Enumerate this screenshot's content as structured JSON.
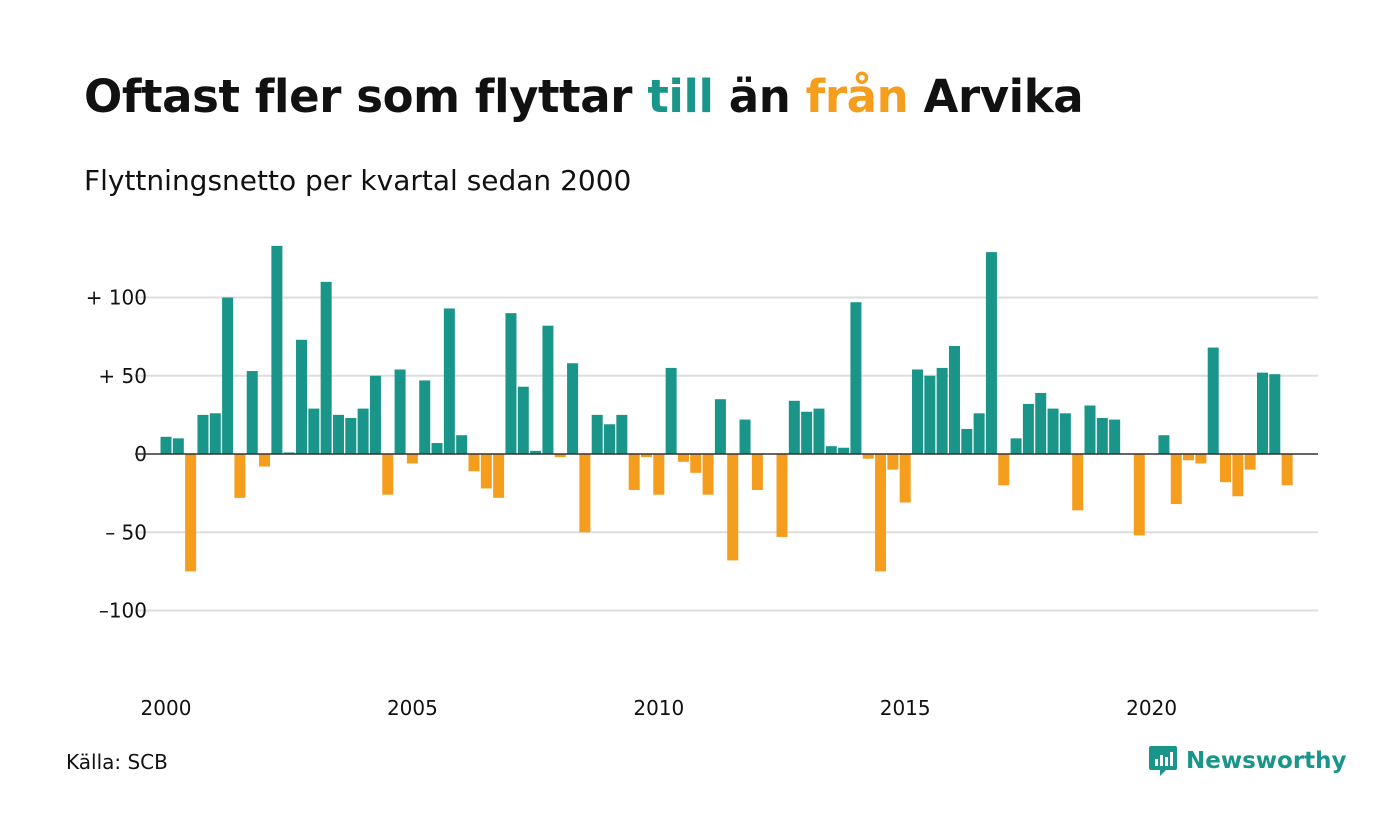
{
  "title": {
    "part1": "Oftast fler som flyttar",
    "till": "till",
    "part2": "än",
    "fran": "från",
    "part3": "Arvika"
  },
  "subtitle": "Flyttningsnetto per kvartal sedan 2000",
  "source": "Källa: SCB",
  "brand": "Newsworthy",
  "colors": {
    "positive": "#1a9589",
    "negative": "#f59d1d",
    "grid": "#dddddd",
    "text": "#111111"
  },
  "chart_data": {
    "type": "bar",
    "title": "Oftast fler som flyttar till än från Arvika",
    "subtitle": "Flyttningsnetto per kvartal sedan 2000",
    "xlabel": "",
    "ylabel": "",
    "x_ticks": [
      "2000",
      "2005",
      "2010",
      "2015",
      "2020"
    ],
    "y_ticks": [
      {
        "value": 100,
        "label": "+ 100"
      },
      {
        "value": 50,
        "label": "+  50"
      },
      {
        "value": 0,
        "label": "0"
      },
      {
        "value": -50,
        "label": "– 50"
      },
      {
        "value": -100,
        "label": "–100"
      }
    ],
    "ylim": [
      -140,
      140
    ],
    "xlim": [
      2000,
      2023.25
    ],
    "grid": true,
    "legend": "none",
    "start_year": 2000,
    "quarters_per_year": 4,
    "values": [
      11,
      10,
      -75,
      25,
      26,
      100,
      -28,
      53,
      -8,
      133,
      1,
      73,
      29,
      110,
      25,
      23,
      29,
      50,
      -26,
      54,
      -6,
      47,
      7,
      93,
      12,
      -11,
      -22,
      -28,
      90,
      43,
      2,
      82,
      -2,
      58,
      -50,
      25,
      19,
      25,
      -23,
      -2,
      -26,
      55,
      -5,
      -12,
      -26,
      35,
      -68,
      22,
      -23,
      0,
      -53,
      34,
      27,
      29,
      5,
      4,
      97,
      -3,
      -75,
      -10,
      -31,
      54,
      50,
      55,
      69,
      16,
      26,
      129,
      -20,
      10,
      32,
      39,
      29,
      26,
      -36,
      31,
      23,
      22,
      0,
      -52,
      0,
      12,
      -32,
      -4,
      -6,
      68,
      -18,
      -27,
      -10,
      52,
      51,
      -20
    ]
  }
}
